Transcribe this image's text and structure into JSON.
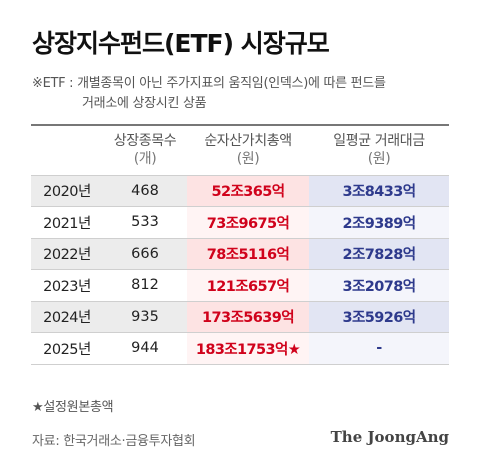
{
  "title": "상장지수펀드(ETF) 시장규모",
  "note": {
    "line1": "※ETF : 개별종목이 아닌 주가지표의 움직임(인덱스)에 따른 펀드를",
    "line2": "거래소에 상장시킨 상품"
  },
  "table": {
    "headers": [
      {
        "label": "",
        "sub": ""
      },
      {
        "label": "상장종목수",
        "sub": "(개)"
      },
      {
        "label": "순자산가치총액",
        "sub": "(원)"
      },
      {
        "label": "일평균 거래대금",
        "sub": "(원)"
      }
    ],
    "rows": [
      {
        "year": "2020년",
        "count": "468",
        "aum": "52조365억",
        "volume": "3조8433억"
      },
      {
        "year": "2021년",
        "count": "533",
        "aum": "73조9675억",
        "volume": "2조9389억"
      },
      {
        "year": "2022년",
        "count": "666",
        "aum": "78조5116억",
        "volume": "2조7828억"
      },
      {
        "year": "2023년",
        "count": "812",
        "aum": "121조657억",
        "volume": "3조2078억"
      },
      {
        "year": "2024년",
        "count": "935",
        "aum": "173조5639억",
        "volume": "3조5926억"
      },
      {
        "year": "2025년",
        "count": "944",
        "aum": "183조1753억★",
        "volume": "-"
      }
    ]
  },
  "footnote": "★설정원본총액",
  "source": "자료: 한국거래소·금융투자협회",
  "brand": "The JoongAng",
  "colors": {
    "aum_text": "#d0021b",
    "volume_text": "#2e3a8c",
    "odd_row": "#ececec"
  }
}
